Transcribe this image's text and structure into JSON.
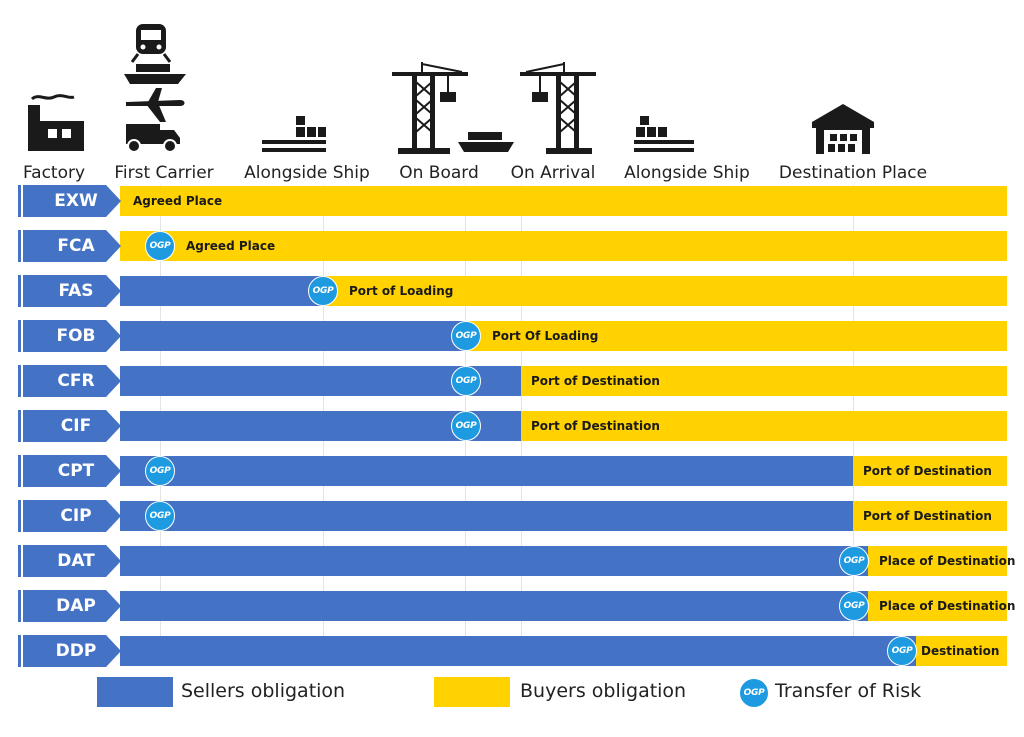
{
  "colors": {
    "seller": "#4472c4",
    "buyer": "#ffd200",
    "risk": "#1e9be0",
    "icon": "#1a1a1a"
  },
  "stages": [
    {
      "label": "Factory",
      "icon": "factory-icon"
    },
    {
      "label": "First Carrier",
      "icon": "transport-modes-icon"
    },
    {
      "label": "Alongside Ship",
      "icon": "quay-cargo-icon"
    },
    {
      "label": "On Board",
      "icon": "crane-ship-icon"
    },
    {
      "label": "On Arrival",
      "icon": "crane-icon"
    },
    {
      "label": "Alongside Ship",
      "icon": "quay-cargo-icon"
    },
    {
      "label": "Destination Place",
      "icon": "warehouse-icon"
    }
  ],
  "risk_badge_text": "OGP",
  "terms": [
    {
      "code": "EXW",
      "place": "Agreed Place"
    },
    {
      "code": "FCA",
      "place": "Agreed Place"
    },
    {
      "code": "FAS",
      "place": "Port of Loading"
    },
    {
      "code": "FOB",
      "place": "Port Of Loading"
    },
    {
      "code": "CFR",
      "place": "Port of Destination"
    },
    {
      "code": "CIF",
      "place": "Port of Destination"
    },
    {
      "code": "CPT",
      "place": "Port of Destination"
    },
    {
      "code": "CIP",
      "place": "Port of Destination"
    },
    {
      "code": "DAT",
      "place": "Place of Destination"
    },
    {
      "code": "DAP",
      "place": "Place of Destination"
    },
    {
      "code": "DDP",
      "place": "Destination"
    }
  ],
  "legend": {
    "seller": "Sellers obligation",
    "buyer": "Buyers obligation",
    "risk": "Transfer of Risk"
  }
}
